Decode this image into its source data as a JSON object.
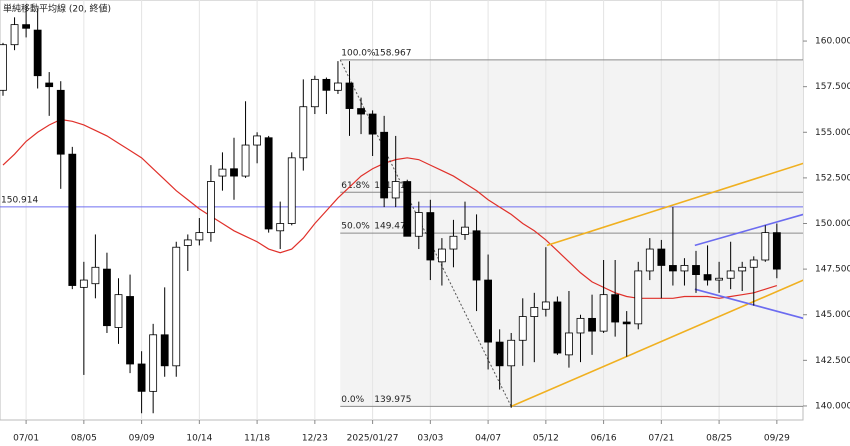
{
  "chart_data": {
    "type": "candlestick",
    "categories": [
      null,
      null,
      "07/01",
      null,
      null,
      null,
      null,
      "08/05",
      null,
      null,
      null,
      null,
      "09/09",
      null,
      null,
      null,
      null,
      "10/14",
      null,
      null,
      null,
      null,
      "11/18",
      null,
      null,
      null,
      null,
      "12/23",
      null,
      null,
      null,
      null,
      "2025/01/27",
      null,
      null,
      null,
      null,
      "03/03",
      null,
      null,
      null,
      null,
      "04/07",
      null,
      null,
      null,
      null,
      "05/12",
      null,
      null,
      null,
      null,
      "06/16",
      null,
      null,
      null,
      null,
      "07/21",
      null,
      null,
      null,
      null,
      "08/25",
      null,
      null,
      null,
      null,
      "09/29"
    ],
    "open": [
      157.3,
      159.8,
      160.9,
      160.6,
      157.7,
      157.3,
      153.8,
      146.5,
      146.7,
      147.5,
      144.3,
      146.0,
      142.3,
      140.8,
      143.9,
      142.2,
      148.8,
      149.1,
      149.5,
      152.6,
      153.0,
      152.6,
      154.3,
      154.7,
      149.6,
      150.0,
      153.6,
      156.4,
      157.9,
      157.3,
      157.7,
      156.3,
      156.0,
      155.0,
      151.4,
      152.3,
      149.3,
      150.6,
      147.9,
      148.6,
      149.4,
      149.6,
      146.9,
      143.5,
      142.2,
      143.6,
      144.9,
      145.3,
      145.7,
      142.8,
      144.0,
      144.8,
      144.1,
      146.1,
      144.6,
      144.5,
      147.4,
      148.6,
      147.7,
      147.4,
      147.7,
      147.2,
      146.9,
      147.0,
      147.4,
      147.6,
      148.0,
      149.5
    ],
    "high": [
      159.9,
      161.3,
      161.95,
      161.8,
      158.3,
      157.8,
      154.2,
      147.9,
      149.4,
      148.4,
      147.0,
      147.2,
      143.0,
      144.5,
      146.5,
      149.0,
      149.4,
      150.3,
      153.2,
      153.9,
      154.7,
      156.7,
      155.0,
      154.8,
      151.2,
      153.9,
      157.9,
      158.1,
      158.0,
      158.9,
      158.9,
      156.9,
      156.2,
      155.9,
      154.8,
      152.4,
      151.2,
      151.3,
      149.2,
      150.2,
      151.2,
      150.5,
      148.3,
      144.2,
      144.0,
      145.9,
      146.2,
      148.7,
      146.0,
      146.3,
      145.0,
      146.1,
      148.0,
      148.0,
      145.2,
      147.9,
      149.2,
      149.1,
      150.9,
      148.1,
      148.5,
      148.8,
      147.9,
      149.0,
      147.9,
      148.2,
      149.9,
      150.0
    ],
    "low": [
      157.0,
      159.5,
      160.2,
      157.4,
      155.9,
      151.9,
      146.4,
      141.7,
      145.9,
      144.0,
      143.4,
      141.8,
      139.6,
      139.6,
      141.6,
      141.6,
      147.4,
      148.8,
      149.0,
      151.8,
      151.3,
      152.5,
      153.3,
      149.5,
      148.6,
      149.9,
      152.9,
      156.0,
      156.0,
      157.1,
      154.8,
      154.9,
      153.7,
      150.9,
      150.9,
      149.3,
      148.6,
      146.9,
      146.6,
      147.6,
      149.1,
      145.2,
      142.0,
      140.9,
      139.9,
      142.2,
      142.4,
      144.9,
      142.8,
      142.1,
      142.4,
      142.8,
      144.0,
      143.8,
      142.7,
      144.2,
      146.9,
      145.9,
      146.6,
      146.6,
      146.2,
      146.6,
      146.2,
      146.4,
      146.3,
      145.5,
      147.9,
      147.0
    ],
    "close": [
      159.8,
      160.9,
      160.7,
      158.1,
      157.5,
      153.8,
      146.6,
      146.9,
      147.6,
      144.4,
      146.1,
      142.3,
      140.8,
      143.9,
      142.2,
      148.7,
      149.1,
      149.5,
      152.3,
      152.98,
      152.6,
      154.3,
      154.8,
      149.7,
      150.0,
      153.6,
      156.4,
      157.9,
      157.3,
      157.7,
      156.3,
      156.0,
      154.9,
      151.4,
      152.3,
      149.3,
      150.6,
      148.0,
      148.6,
      149.3,
      149.8,
      146.9,
      143.5,
      142.2,
      143.6,
      144.9,
      145.4,
      145.7,
      142.9,
      144.0,
      144.8,
      144.1,
      146.1,
      144.6,
      144.5,
      147.4,
      148.6,
      147.7,
      147.4,
      147.7,
      147.2,
      146.9,
      147.0,
      147.4,
      147.6,
      148.0,
      149.5,
      147.5
    ],
    "up_color": "#ffffff",
    "down_color": "#000000",
    "ma": {
      "name": "単純移動平均線 (20, 終値)",
      "color": "#e0302a",
      "values": [
        153.2,
        153.8,
        154.5,
        155.0,
        155.4,
        155.7,
        155.6,
        155.4,
        155.1,
        154.8,
        154.4,
        154.0,
        153.6,
        153.0,
        152.4,
        151.8,
        151.3,
        150.8,
        150.4,
        150.0,
        149.6,
        149.3,
        149.0,
        148.6,
        148.4,
        148.6,
        149.2,
        150.0,
        150.7,
        151.4,
        152.0,
        152.6,
        153.0,
        153.3,
        153.5,
        153.6,
        153.5,
        153.2,
        152.9,
        152.6,
        152.2,
        151.8,
        151.3,
        150.9,
        150.5,
        150.0,
        149.6,
        149.1,
        148.5,
        147.9,
        147.3,
        146.8,
        146.5,
        146.2,
        146.0,
        145.9,
        145.9,
        145.9,
        145.9,
        146.0,
        146.0,
        146.0,
        145.9,
        146.0,
        146.1,
        146.2,
        146.4,
        146.6
      ]
    },
    "ylim": [
      139.23,
      162.25
    ],
    "yticks": [
      {
        "value": 140,
        "label": "140.000"
      },
      {
        "value": 142.5,
        "label": "142.500"
      },
      {
        "value": 145,
        "label": "145.000"
      },
      {
        "value": 147.5,
        "label": "147.500"
      },
      {
        "value": 150,
        "label": "150.000"
      },
      {
        "value": 152.5,
        "label": "152.500"
      },
      {
        "value": 155,
        "label": "155.000"
      },
      {
        "value": 157.5,
        "label": "157.500"
      },
      {
        "value": 160,
        "label": "160.000"
      }
    ],
    "hlines": [
      {
        "value": 150.914,
        "color": "#6f6ff0"
      }
    ],
    "fibonacci": {
      "x_start": 29.2,
      "levels": [
        {
          "ratio": "100.0%",
          "price": 158.967
        },
        {
          "ratio": "61.8%",
          "price": 151.712
        },
        {
          "ratio": "50.0%",
          "price": 149.471
        },
        {
          "ratio": "0.0%",
          "price": 139.975
        }
      ]
    },
    "drawings": [
      {
        "color": "#555555",
        "dash": true,
        "x": [
          29.2,
          44.0
        ],
        "y": [
          158.967,
          139.975
        ]
      },
      {
        "color": "#f0b020",
        "x": [
          44.0,
          69.3
        ],
        "y": [
          139.975,
          146.9
        ]
      },
      {
        "color": "#f0b020",
        "x": [
          47.1,
          69.3
        ],
        "y": [
          148.8,
          153.3
        ]
      },
      {
        "color": "#6b6bf0",
        "x": [
          59.9,
          69.3
        ],
        "y": [
          148.8,
          150.5
        ]
      },
      {
        "color": "#6b6bf0",
        "x": [
          59.9,
          69.3
        ],
        "y": [
          146.4,
          144.8
        ]
      }
    ]
  }
}
